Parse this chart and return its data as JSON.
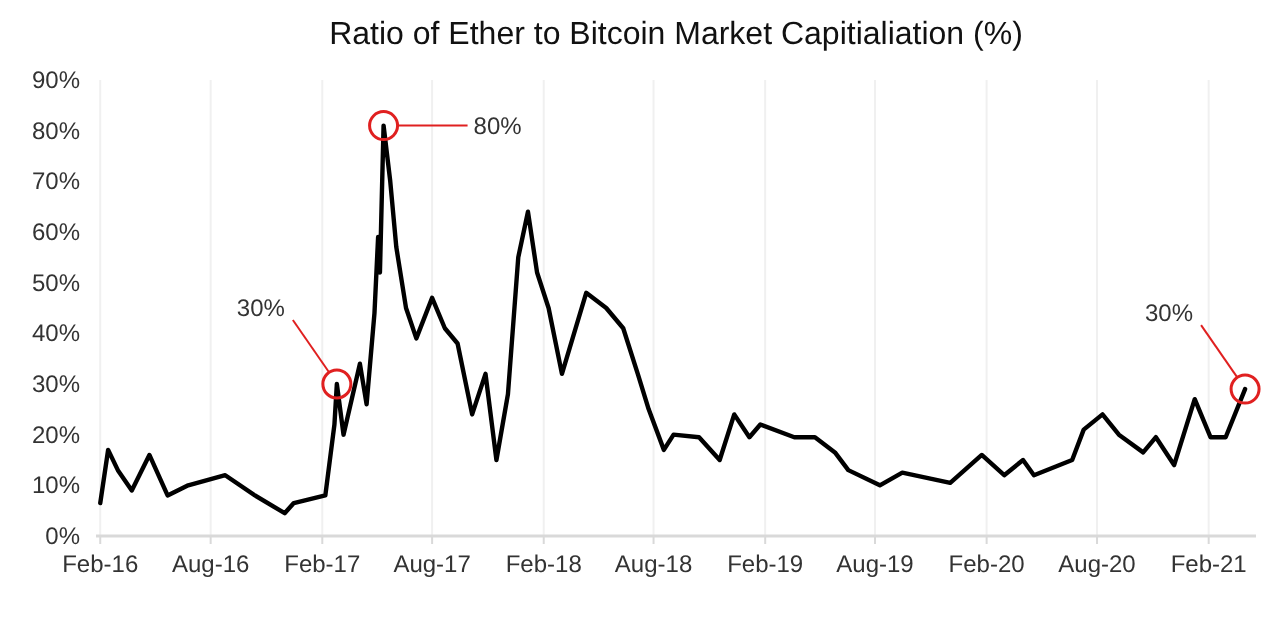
{
  "chart_data": {
    "type": "line",
    "title": "Ratio of Ether to Bitcoin Market Capitialiation (%)",
    "x": [
      "2016-02-01",
      "2016-02-14",
      "2016-03-01",
      "2016-03-24",
      "2016-04-22",
      "2016-05-22",
      "2016-06-25",
      "2016-08-25",
      "2016-10-13",
      "2016-12-01",
      "2016-12-16",
      "2017-02-06",
      "2017-02-21",
      "2017-02-25",
      "2017-03-08",
      "2017-04-04",
      "2017-04-15",
      "2017-04-28",
      "2017-05-04",
      "2017-05-07",
      "2017-05-13",
      "2017-05-24",
      "2017-06-03",
      "2017-06-19",
      "2017-07-06",
      "2017-08-01",
      "2017-08-22",
      "2017-09-12",
      "2017-10-06",
      "2017-10-28",
      "2017-11-15",
      "2017-12-04",
      "2017-12-21",
      "2018-01-06",
      "2018-01-21",
      "2018-02-09",
      "2018-03-03",
      "2018-04-12",
      "2018-05-15",
      "2018-06-12",
      "2018-07-06",
      "2018-07-24",
      "2018-08-18",
      "2018-09-03",
      "2018-10-15",
      "2018-11-18",
      "2018-12-12",
      "2019-01-06",
      "2019-01-24",
      "2019-03-21",
      "2019-04-24",
      "2019-05-27",
      "2019-06-18",
      "2019-08-09",
      "2019-09-15",
      "2019-12-03",
      "2020-01-24",
      "2020-03-01",
      "2020-04-01",
      "2020-04-19",
      "2020-06-21",
      "2020-07-10",
      "2020-08-10",
      "2020-09-06",
      "2020-10-16",
      "2020-11-06",
      "2020-12-06",
      "2021-01-09",
      "2021-02-04",
      "2021-03-01",
      "2021-04-02"
    ],
    "series": [
      {
        "color": "#000000",
        "values": [
          6.5,
          17,
          13,
          9,
          16,
          8,
          10,
          12,
          8,
          4.5,
          6.5,
          8,
          22,
          30,
          20,
          34,
          26,
          44,
          59,
          52,
          81,
          70,
          57,
          45,
          39,
          47,
          41,
          38,
          24,
          32,
          15,
          28,
          55,
          64,
          52,
          45,
          32,
          48,
          45,
          41,
          32,
          25,
          17,
          20,
          19.5,
          15,
          24,
          19.5,
          22,
          19.5,
          19.5,
          16.5,
          13,
          10,
          12.5,
          10.5,
          16,
          12,
          15,
          12,
          15,
          21,
          24,
          20,
          16.5,
          19.5,
          14,
          27,
          19.5,
          19.5,
          29
        ]
      }
    ],
    "xlim": [
      "2016-01-25",
      "2021-04-20"
    ],
    "xticks": [
      {
        "value": "2016-02-01",
        "label": "Feb-16"
      },
      {
        "value": "2016-08-01",
        "label": "Aug-16"
      },
      {
        "value": "2017-02-01",
        "label": "Feb-17"
      },
      {
        "value": "2017-08-01",
        "label": "Aug-17"
      },
      {
        "value": "2018-02-01",
        "label": "Feb-18"
      },
      {
        "value": "2018-08-01",
        "label": "Aug-18"
      },
      {
        "value": "2019-02-01",
        "label": "Feb-19"
      },
      {
        "value": "2019-08-01",
        "label": "Aug-19"
      },
      {
        "value": "2020-02-01",
        "label": "Feb-20"
      },
      {
        "value": "2020-08-01",
        "label": "Aug-20"
      },
      {
        "value": "2021-02-01",
        "label": "Feb-21"
      }
    ],
    "ylim": [
      0,
      90
    ],
    "yticks": [
      {
        "value": 0,
        "label": "0%"
      },
      {
        "value": 10,
        "label": "10%"
      },
      {
        "value": 20,
        "label": "20%"
      },
      {
        "value": 30,
        "label": "30%"
      },
      {
        "value": 40,
        "label": "40%"
      },
      {
        "value": 50,
        "label": "50%"
      },
      {
        "value": 60,
        "label": "60%"
      },
      {
        "value": 70,
        "label": "70%"
      },
      {
        "value": 80,
        "label": "80%"
      },
      {
        "value": 90,
        "label": "90%"
      }
    ],
    "grid": "x",
    "annotations": [
      {
        "text": "30%",
        "x": "2017-02-25",
        "y": 30
      },
      {
        "text": "80%",
        "x": "2017-05-13",
        "y": 81
      },
      {
        "text": "30%",
        "x": "2021-04-02",
        "y": 29
      }
    ]
  }
}
